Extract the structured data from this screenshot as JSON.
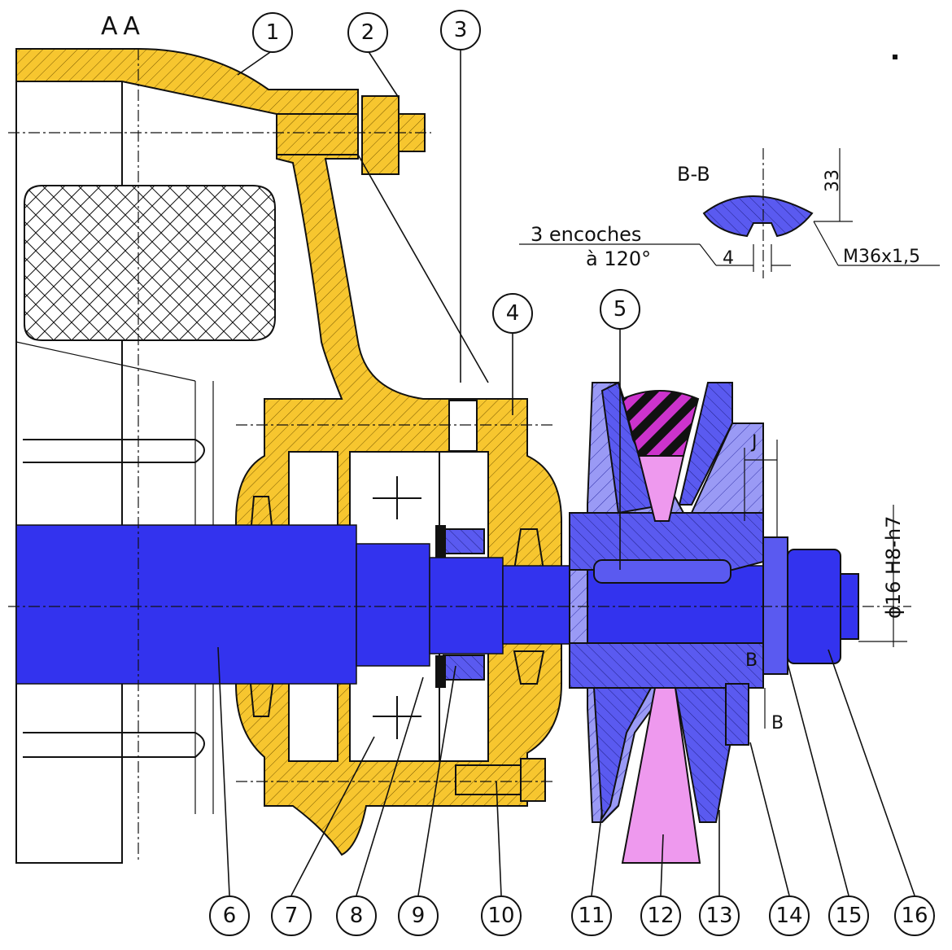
{
  "view_label": "AA",
  "section_label": "B-B",
  "notch_note_line1": "3 encoches",
  "notch_note_line2": "à 120°",
  "dim_notch_width": "4",
  "dim_height": "33",
  "thread_spec": "M36x1,5",
  "dim_J": "J",
  "fit_spec": "ϕ16 H8-h7",
  "cut_mark_B1": "B",
  "cut_mark_B2": "B",
  "callouts": [
    "1",
    "2",
    "3",
    "4",
    "5",
    "6",
    "7",
    "8",
    "9",
    "10",
    "11",
    "12",
    "13",
    "14",
    "15",
    "16"
  ],
  "colors": {
    "housing": "#f7c62f",
    "shaft": "#3333ee",
    "pulley": "#5a5af0",
    "pulley_light": "#9a9af5",
    "belt": "#ee99ee",
    "belt_core": "#cc33cc",
    "outline": "#111111"
  }
}
